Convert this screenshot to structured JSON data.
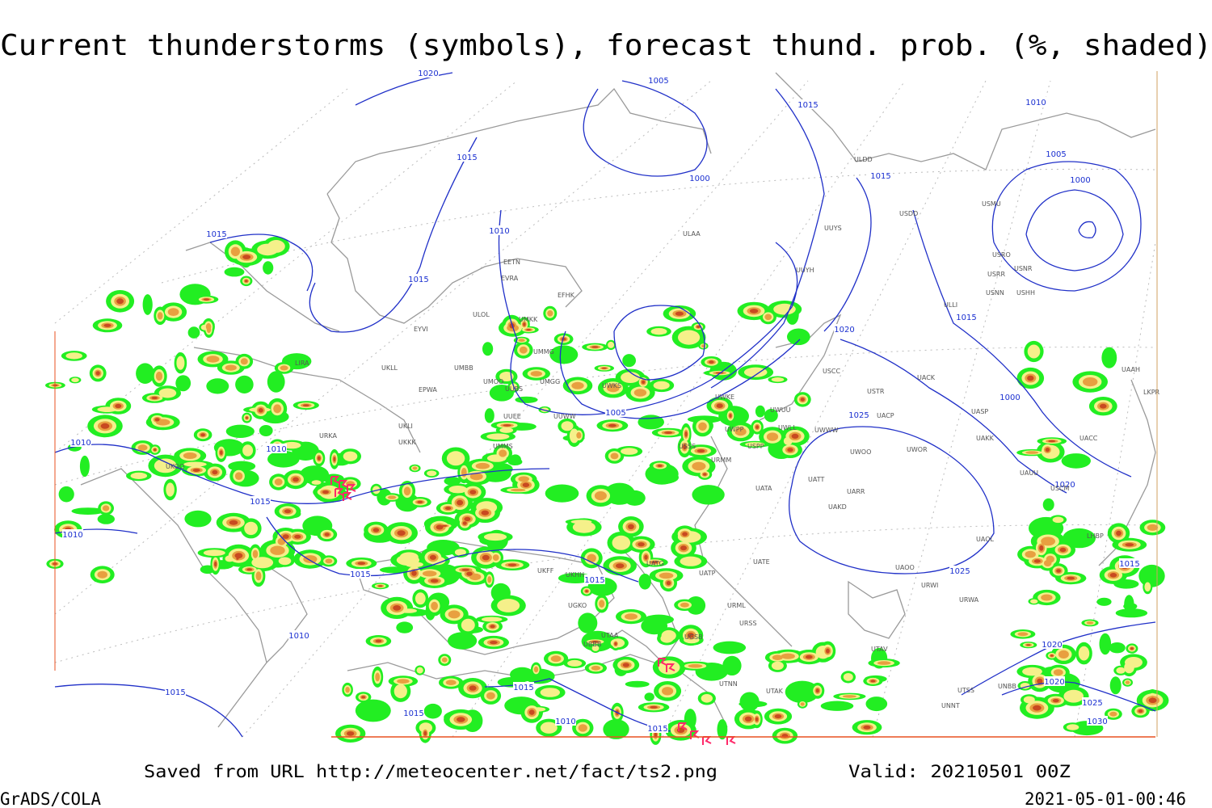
{
  "header": {
    "title": "Current thunderstorms (symbols), forecast thund. prob. (%, shaded)"
  },
  "footer": {
    "source": "Saved from URL http://meteocenter.net/fact/ts2.png",
    "valid": "Valid: 20210501 00Z",
    "software": "GrADS/COLA",
    "timestamp": "2021-05-01-00:46"
  },
  "isobar_labels": [
    "1020",
    "1005",
    "1015",
    "1010",
    "1005",
    "1000",
    "1015",
    "1000",
    "1015",
    "1010",
    "1015",
    "1015",
    "1010",
    "1000",
    "1005",
    "1020",
    "1025",
    "1010",
    "1010",
    "1015",
    "1015",
    "1015",
    "1010",
    "1015",
    "1015",
    "1015",
    "1010",
    "1015",
    "1015",
    "1020",
    "1025",
    "1015",
    "1020",
    "1020",
    "1025",
    "1030"
  ],
  "stations": [
    "ULAA",
    "UUYS",
    "UUYH",
    "ULDD",
    "USDD",
    "USMU",
    "USRO",
    "USNR",
    "USRR",
    "USNN",
    "USHH",
    "ULLI",
    "EFHK",
    "EETN",
    "EVRA",
    "ULOL",
    "UMKK",
    "EYVI",
    "UMMG",
    "UMBB",
    "EPWA",
    "UKLL",
    "UKLI",
    "UKKK",
    "UMMS",
    "UMOO",
    "UUBS",
    "UMGG",
    "UUEE",
    "UUWW",
    "UWKS",
    "UWKE",
    "UWUU",
    "UWLL",
    "UWWW",
    "UWPP",
    "USPP",
    "USSS",
    "USCC",
    "USTR",
    "UACP",
    "UACK",
    "UASP",
    "UAKK",
    "UACC",
    "USCM",
    "UAUU",
    "UWOO",
    "UWOR",
    "UATT",
    "UARR",
    "UAKD",
    "UATA",
    "UAOL",
    "UAOO",
    "URWI",
    "URWA",
    "UATG",
    "UATP",
    "UATE",
    "URML",
    "URSS",
    "UGSB",
    "UGKO",
    "UBBB",
    "UTAA",
    "UTNN",
    "UTAK",
    "UTAV",
    "UTSS",
    "UNNT",
    "UNBB",
    "UAAH",
    "LKPR",
    "LHBP",
    "LIRA",
    "URKA",
    "UKOO",
    "UKFF",
    "UKHH",
    "URMM"
  ]
}
